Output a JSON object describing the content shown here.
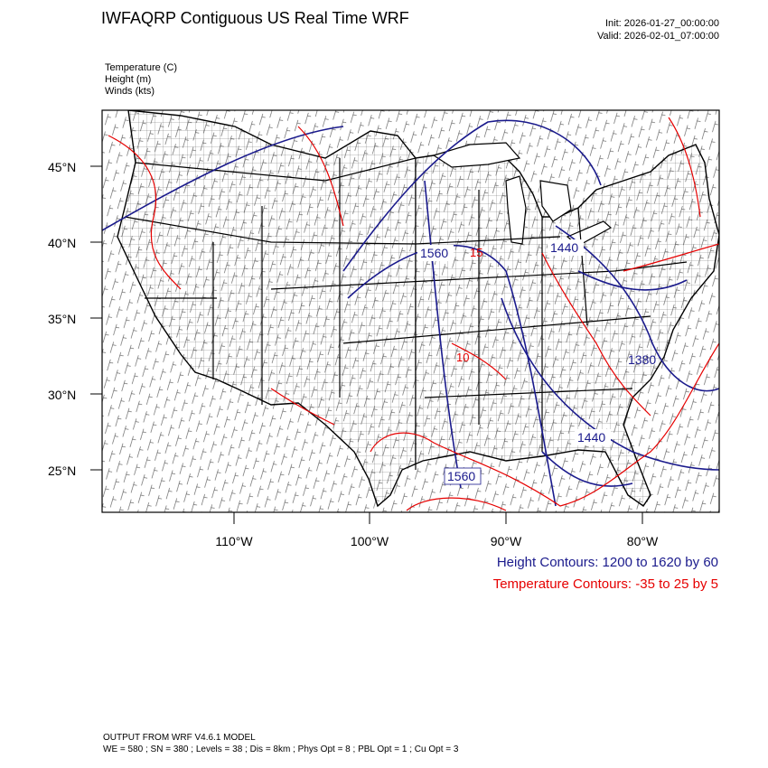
{
  "header": {
    "title": "IWFAQRP Contiguous US Real Time WRF",
    "init": "Init: 2026-01-27_00:00:00",
    "valid": "Valid: 2026-02-01_07:00:00"
  },
  "fields": [
    "Temperature   (C)",
    "Height   (m)",
    "Winds   (kts)"
  ],
  "axes": {
    "lat_labels": [
      "45°N",
      "40°N",
      "35°N",
      "30°N",
      "25°N"
    ],
    "lon_labels": [
      "110°W",
      "100°W",
      "90°W",
      "80°W"
    ]
  },
  "contour_labels": {
    "height": [
      "1560",
      "1440",
      "1440",
      "1560",
      "1380"
    ],
    "temperature": [
      "15",
      "10"
    ]
  },
  "legend": {
    "height": "Height Contours: 1200 to 1620 by 60",
    "temperature": "Temperature Contours: -35 to 25 by 5"
  },
  "footer": {
    "line1": "OUTPUT FROM WRF V4.6.1 MODEL",
    "line2": "WE = 580 ; SN = 380 ; Levels = 38 ; Dis = 8km ; Phys Opt = 8 ; PBL Opt = 1 ; Cu Opt = 3"
  },
  "colors": {
    "height_contour": "#1a1a8c",
    "temperature_contour": "#e60000",
    "map_lines": "#000000"
  }
}
